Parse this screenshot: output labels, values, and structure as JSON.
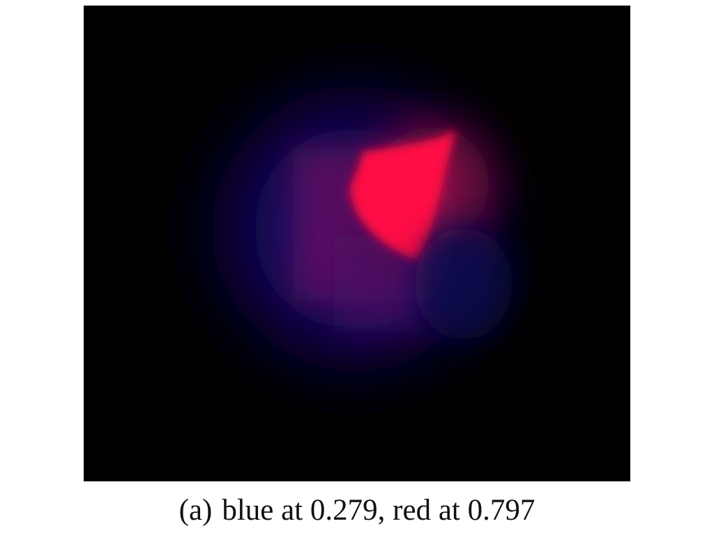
{
  "figure": {
    "background_color": "#000000",
    "colors": {
      "blue": "#1a0a6e",
      "purple": "#7a1268",
      "red": "#ff0a44"
    },
    "caption": {
      "label": "(a)",
      "text": "blue at 0.279, red at 0.797"
    }
  }
}
